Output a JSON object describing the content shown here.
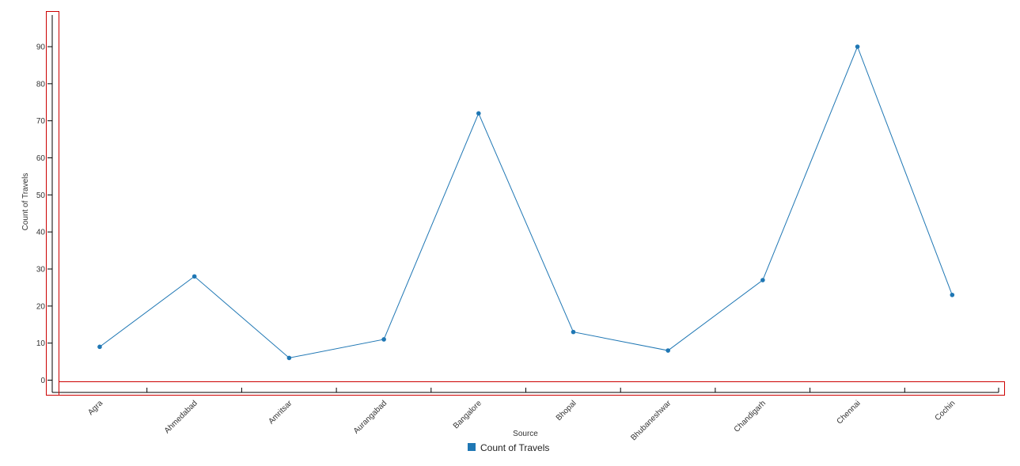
{
  "chart_data": {
    "type": "line",
    "xlabel": "Source",
    "ylabel": "Count of Travels",
    "categories": [
      "Agra",
      "Ahmedabad",
      "Amritsar",
      "Aurangabad",
      "Bangalore",
      "Bhopal",
      "Bhubaneshwar",
      "Chandigarh",
      "Chennai",
      "Cochin"
    ],
    "series": [
      {
        "name": "Count of Travels",
        "values": [
          9,
          28,
          6,
          11,
          72,
          13,
          8,
          27,
          90,
          23
        ],
        "color": "#1f77b4"
      }
    ],
    "yticks": [
      0,
      10,
      20,
      30,
      40,
      50,
      60,
      70,
      80,
      90
    ],
    "ylim": [
      0,
      90
    ],
    "grid": false,
    "legend_position": "bottom-center",
    "highlight_color": "#cc0000"
  }
}
